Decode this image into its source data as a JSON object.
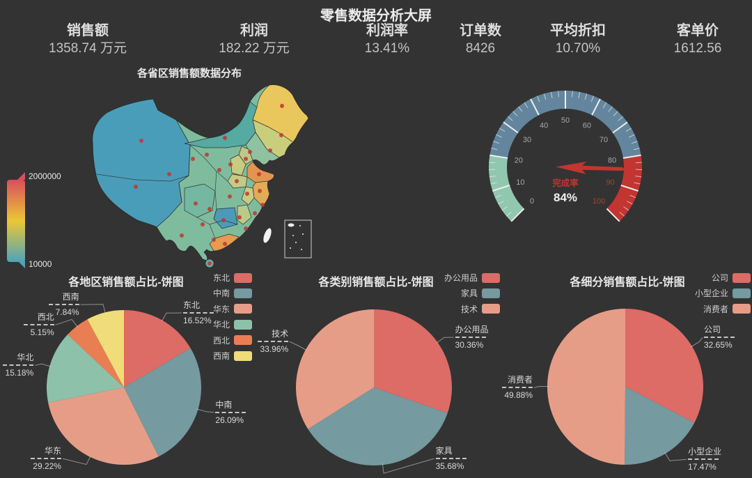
{
  "page": {
    "title": "零售数据分析大屏",
    "background_color": "#333333"
  },
  "kpis": [
    {
      "label": "销售额",
      "value": "1358.74 万元"
    },
    {
      "label": "利润",
      "value": "182.22 万元"
    },
    {
      "label": "利润率",
      "value": "13.41%"
    },
    {
      "label": "订单数",
      "value": "8426"
    },
    {
      "label": "平均折扣",
      "value": "10.70%"
    },
    {
      "label": "客单价",
      "value": "1612.56"
    }
  ],
  "map_panel": {
    "title": "各省区销售额数据分布",
    "visual_map": {
      "max_label": "2000000",
      "min_label": "10000",
      "high_color": "#d94e5d",
      "mid_color": "#eac736",
      "low_color": "#50a3ba"
    },
    "scatter_color": "#c23531"
  },
  "gauge_panel": {
    "label": "完成率",
    "value_text": "84%"
  },
  "chart_data": [
    {
      "type": "map",
      "title": "各省区销售额数据分布",
      "visual_range": [
        10000,
        2000000
      ],
      "visual_colors_low_to_high": [
        "#50a3ba",
        "#eac736",
        "#d94e5d"
      ],
      "legend_position": "left"
    },
    {
      "type": "gauge",
      "title": "完成率",
      "value": 84,
      "min": 0,
      "max": 100,
      "tick_labels": [
        0,
        10,
        20,
        30,
        40,
        50,
        60,
        70,
        80,
        90,
        100
      ],
      "zones": [
        {
          "from": 0,
          "to": 20,
          "color": "#91c7ae"
        },
        {
          "from": 20,
          "to": 80,
          "color": "#63869e"
        },
        {
          "from": 80,
          "to": 100,
          "color": "#c23531"
        }
      ],
      "pointer_color": "#c23531"
    },
    {
      "type": "pie",
      "title": "各地区销售额占比-饼图",
      "categories": [
        "东北",
        "中南",
        "华东",
        "华北",
        "西北",
        "西南"
      ],
      "values": [
        16.52,
        26.09,
        29.22,
        15.18,
        5.15,
        7.84
      ],
      "unit": "%",
      "colors": [
        "#dd6b66",
        "#759aa0",
        "#e69d87",
        "#8dc1a9",
        "#ea7e53",
        "#eedd78"
      ],
      "legend_position": "right"
    },
    {
      "type": "pie",
      "title": "各类别销售额占比-饼图",
      "categories": [
        "办公用品",
        "家具",
        "技术"
      ],
      "values": [
        30.36,
        35.68,
        33.96
      ],
      "unit": "%",
      "colors": [
        "#dd6b66",
        "#759aa0",
        "#e69d87"
      ],
      "legend_position": "right"
    },
    {
      "type": "pie",
      "title": "各细分销售额占比-饼图",
      "categories": [
        "公司",
        "小型企业",
        "消费者"
      ],
      "values": [
        32.65,
        17.47,
        49.88
      ],
      "unit": "%",
      "colors": [
        "#dd6b66",
        "#759aa0",
        "#e69d87"
      ],
      "legend_position": "right"
    }
  ]
}
